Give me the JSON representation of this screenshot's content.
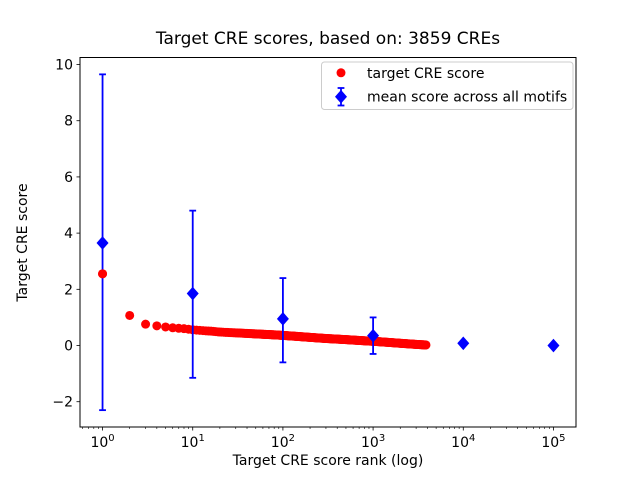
{
  "chart_data": {
    "type": "scatter",
    "title": "Target CRE scores, based on: 3859 CREs",
    "xlabel": "Target CRE score rank (log)",
    "ylabel": "Target CRE score",
    "x_scale": "log10",
    "xlim_log10": [
      -0.25,
      5.25
    ],
    "ylim": [
      -2.9,
      10.25
    ],
    "grid": false,
    "legend_position": "upper right",
    "x_ticks": [
      {
        "value": 1,
        "label": "10^0"
      },
      {
        "value": 10,
        "label": "10^1"
      },
      {
        "value": 100,
        "label": "10^2"
      },
      {
        "value": 1000,
        "label": "10^3"
      },
      {
        "value": 10000,
        "label": "10^4"
      },
      {
        "value": 100000,
        "label": "10^5"
      }
    ],
    "y_ticks": [
      {
        "value": -2,
        "label": "−2"
      },
      {
        "value": 0,
        "label": "0"
      },
      {
        "value": 2,
        "label": "2"
      },
      {
        "value": 4,
        "label": "4"
      },
      {
        "value": 6,
        "label": "6"
      },
      {
        "value": 8,
        "label": "8"
      },
      {
        "value": 10,
        "label": "10"
      }
    ],
    "series": [
      {
        "name": "target CRE score",
        "type": "scatter",
        "marker": "circle",
        "color": "#ff0000",
        "marker_diameter_px": 9,
        "n_points": 3859,
        "curve_anchor_points_rank_score": [
          [
            1,
            2.55
          ],
          [
            2,
            1.07
          ],
          [
            3,
            0.76
          ],
          [
            4,
            0.7
          ],
          [
            5,
            0.66
          ],
          [
            6,
            0.63
          ],
          [
            8,
            0.6
          ],
          [
            10,
            0.56
          ],
          [
            13,
            0.53
          ],
          [
            16,
            0.51
          ],
          [
            20,
            0.48
          ],
          [
            30,
            0.45
          ],
          [
            40,
            0.43
          ],
          [
            60,
            0.4
          ],
          [
            80,
            0.38
          ],
          [
            100,
            0.36
          ],
          [
            150,
            0.32
          ],
          [
            200,
            0.29
          ],
          [
            300,
            0.25
          ],
          [
            500,
            0.21
          ],
          [
            700,
            0.18
          ],
          [
            1000,
            0.15
          ],
          [
            1500,
            0.11
          ],
          [
            2000,
            0.08
          ],
          [
            3000,
            0.04
          ],
          [
            3859,
            0.02
          ]
        ]
      },
      {
        "name": "mean score across all motifs",
        "type": "errorbar",
        "marker": "diamond",
        "color": "#0000ff",
        "points": [
          {
            "rank": 1,
            "mean": 3.65,
            "lo": -2.3,
            "hi": 9.65
          },
          {
            "rank": 10,
            "mean": 1.85,
            "lo": -1.15,
            "hi": 4.8
          },
          {
            "rank": 100,
            "mean": 0.95,
            "lo": -0.6,
            "hi": 2.4
          },
          {
            "rank": 1000,
            "mean": 0.35,
            "lo": -0.3,
            "hi": 1.0
          },
          {
            "rank": 10000,
            "mean": 0.08,
            "lo": 0.08,
            "hi": 0.08
          },
          {
            "rank": 100000,
            "mean": 0.0,
            "lo": 0.0,
            "hi": 0.0
          }
        ]
      }
    ],
    "legend": {
      "items": [
        "target CRE score",
        "mean score across all motifs"
      ],
      "border_color": "#cccccc",
      "background": "#ffffff"
    }
  }
}
